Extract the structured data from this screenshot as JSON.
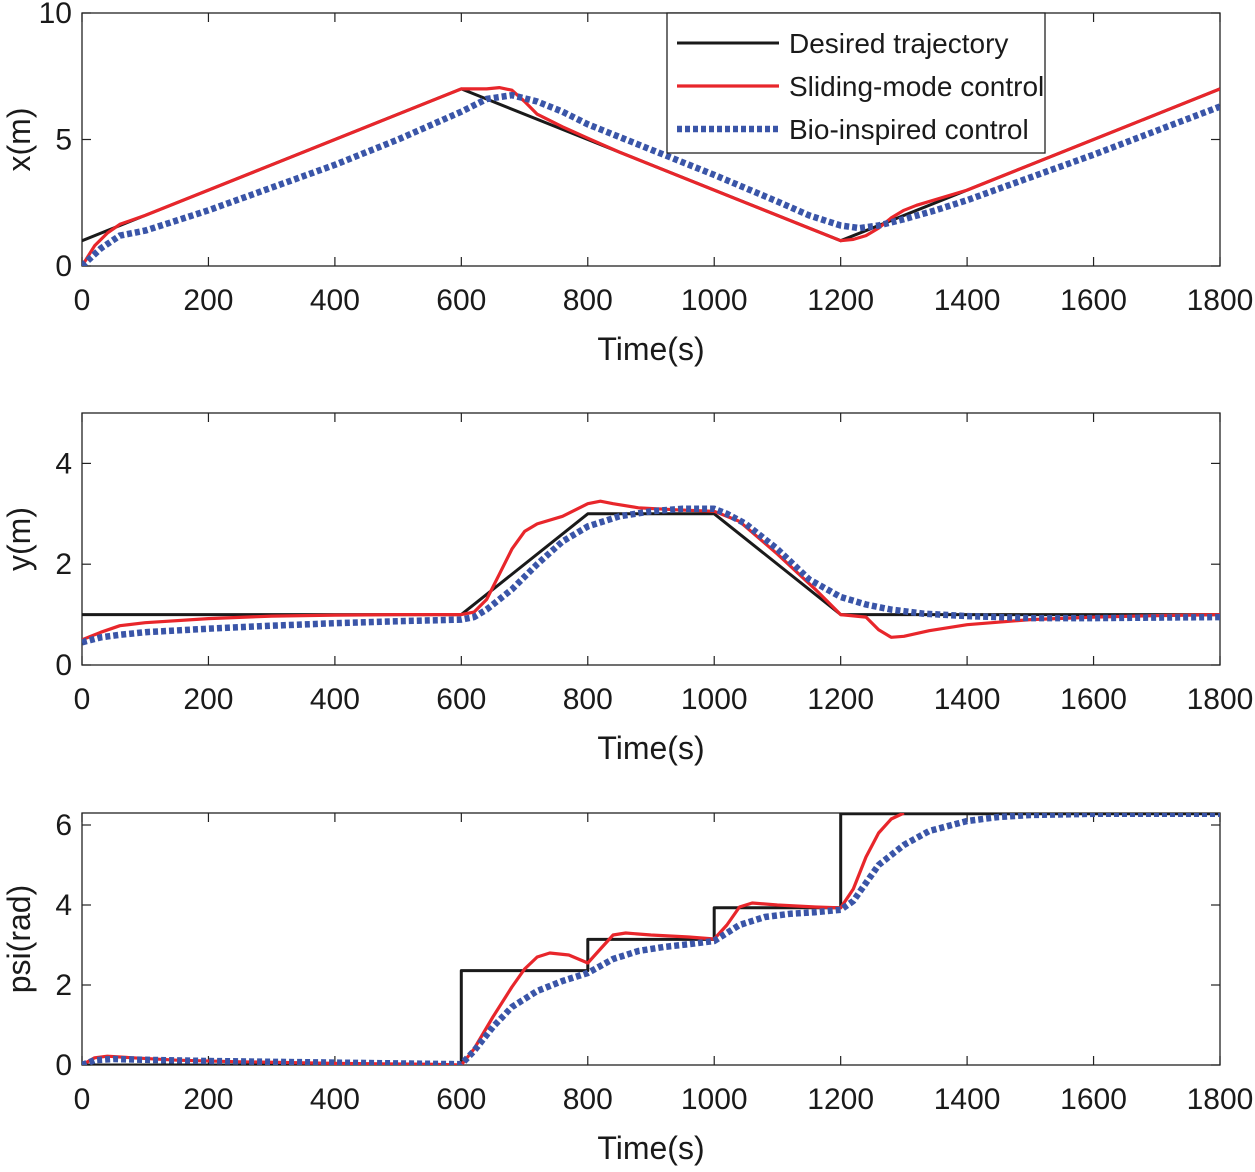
{
  "figure": {
    "xlabel": "Time(s)"
  },
  "legend": {
    "position": "top-right of first panel",
    "entries": [
      {
        "label": "Desired trajectory",
        "color": "#1a1a1a",
        "style": "solid"
      },
      {
        "label": "Sliding-mode control",
        "color": "#e8262b",
        "style": "solid"
      },
      {
        "label": "Bio-inspired control",
        "color": "#3a55a8",
        "style": "dotted"
      }
    ]
  },
  "chart_data": [
    {
      "type": "line",
      "xlabel": "Time(s)",
      "ylabel": "x(m)",
      "xlim": [
        0,
        1800
      ],
      "ylim": [
        0,
        10
      ],
      "xticks": [
        0,
        200,
        400,
        600,
        800,
        1000,
        1200,
        1400,
        1600,
        1800
      ],
      "yticks": [
        0,
        5,
        10
      ],
      "grid": false,
      "series": [
        {
          "name": "Desired trajectory",
          "color": "#1a1a1a",
          "x": [
            0,
            600,
            1200,
            1800
          ],
          "y": [
            1,
            7,
            1,
            7
          ]
        },
        {
          "name": "Sliding-mode control",
          "color": "#e8262b",
          "x": [
            0,
            20,
            40,
            60,
            100,
            200,
            300,
            400,
            500,
            600,
            640,
            660,
            680,
            700,
            720,
            760,
            800,
            850,
            900,
            1000,
            1050,
            1100,
            1150,
            1200,
            1220,
            1240,
            1260,
            1280,
            1300,
            1320,
            1400,
            1500,
            1600,
            1700,
            1800
          ],
          "y": [
            0,
            0.8,
            1.3,
            1.65,
            2,
            3,
            4,
            5,
            6,
            7,
            7,
            7.05,
            6.95,
            6.5,
            6,
            5.5,
            5.05,
            4.5,
            4,
            3,
            2.5,
            2,
            1.5,
            1.0,
            1.05,
            1.2,
            1.5,
            1.9,
            2.2,
            2.4,
            3.0,
            4.0,
            5.0,
            6.0,
            7.0
          ]
        },
        {
          "name": "Bio-inspired control",
          "color": "#3a55a8",
          "x": [
            0,
            30,
            60,
            100,
            150,
            200,
            300,
            400,
            500,
            600,
            640,
            680,
            720,
            760,
            800,
            900,
            1000,
            1100,
            1150,
            1200,
            1230,
            1260,
            1300,
            1350,
            1400,
            1500,
            1600,
            1700,
            1800
          ],
          "y": [
            0,
            0.7,
            1.2,
            1.4,
            1.8,
            2.2,
            3.1,
            4.0,
            5.0,
            6.1,
            6.6,
            6.75,
            6.5,
            6.1,
            5.6,
            4.6,
            3.6,
            2.55,
            2.0,
            1.6,
            1.5,
            1.6,
            1.85,
            2.2,
            2.6,
            3.5,
            4.4,
            5.35,
            6.3
          ]
        }
      ]
    },
    {
      "type": "line",
      "xlabel": "Time(s)",
      "ylabel": "y(m)",
      "xlim": [
        0,
        1800
      ],
      "ylim": [
        0,
        5
      ],
      "xticks": [
        0,
        200,
        400,
        600,
        800,
        1000,
        1200,
        1400,
        1600,
        1800
      ],
      "yticks": [
        0,
        2,
        4
      ],
      "grid": false,
      "series": [
        {
          "name": "Desired trajectory",
          "color": "#1a1a1a",
          "x": [
            0,
            600,
            800,
            1000,
            1200,
            1800
          ],
          "y": [
            1,
            1,
            3,
            3,
            1,
            1
          ]
        },
        {
          "name": "Sliding-mode control",
          "color": "#e8262b",
          "x": [
            0,
            30,
            60,
            100,
            200,
            300,
            400,
            500,
            600,
            620,
            640,
            660,
            680,
            700,
            720,
            760,
            800,
            820,
            840,
            880,
            940,
            1000,
            1040,
            1100,
            1160,
            1200,
            1240,
            1260,
            1280,
            1300,
            1340,
            1400,
            1500,
            1600,
            1700,
            1800
          ],
          "y": [
            0.5,
            0.65,
            0.78,
            0.84,
            0.92,
            0.97,
            0.99,
            1.0,
            1.0,
            1.05,
            1.3,
            1.8,
            2.3,
            2.65,
            2.8,
            2.95,
            3.2,
            3.25,
            3.2,
            3.12,
            3.08,
            3.05,
            2.85,
            2.2,
            1.5,
            1.0,
            0.95,
            0.7,
            0.55,
            0.57,
            0.68,
            0.8,
            0.9,
            0.95,
            0.98,
            1.0
          ]
        },
        {
          "name": "Bio-inspired control",
          "color": "#3a55a8",
          "x": [
            0,
            30,
            60,
            100,
            200,
            300,
            400,
            500,
            600,
            620,
            640,
            680,
            720,
            760,
            800,
            850,
            900,
            950,
            1000,
            1020,
            1050,
            1100,
            1150,
            1200,
            1240,
            1280,
            1330,
            1400,
            1500,
            1600,
            1700,
            1800
          ],
          "y": [
            0.45,
            0.55,
            0.6,
            0.65,
            0.72,
            0.78,
            0.83,
            0.87,
            0.9,
            0.95,
            1.1,
            1.5,
            2.0,
            2.45,
            2.75,
            2.95,
            3.05,
            3.1,
            3.1,
            3.0,
            2.8,
            2.3,
            1.7,
            1.35,
            1.2,
            1.1,
            1.02,
            0.97,
            0.93,
            0.93,
            0.94,
            0.95
          ]
        }
      ]
    },
    {
      "type": "line",
      "xlabel": "Time(s)",
      "ylabel": "psi(rad)",
      "xlim": [
        0,
        1800
      ],
      "ylim": [
        0,
        6.3
      ],
      "xticks": [
        0,
        200,
        400,
        600,
        800,
        1000,
        1200,
        1400,
        1600,
        1800
      ],
      "yticks": [
        0,
        2,
        4,
        6
      ],
      "grid": false,
      "series": [
        {
          "name": "Desired trajectory",
          "color": "#1a1a1a",
          "x": [
            0,
            600,
            600,
            800,
            800,
            1000,
            1000,
            1200,
            1200,
            1800
          ],
          "y": [
            0,
            0,
            2.36,
            2.36,
            3.14,
            3.14,
            3.93,
            3.93,
            6.28,
            6.28
          ]
        },
        {
          "name": "Sliding-mode control",
          "color": "#e8262b",
          "x": [
            0,
            20,
            40,
            80,
            150,
            250,
            400,
            550,
            600,
            620,
            650,
            680,
            700,
            720,
            740,
            770,
            800,
            820,
            840,
            860,
            900,
            960,
            1000,
            1020,
            1040,
            1060,
            1100,
            1160,
            1200,
            1220,
            1240,
            1260,
            1280,
            1300
          ],
          "y": [
            0,
            0.18,
            0.22,
            0.18,
            0.12,
            0.08,
            0.04,
            0.02,
            0.0,
            0.4,
            1.2,
            1.95,
            2.4,
            2.7,
            2.8,
            2.75,
            2.55,
            2.9,
            3.25,
            3.3,
            3.25,
            3.2,
            3.15,
            3.5,
            3.95,
            4.05,
            4.0,
            3.95,
            3.93,
            4.4,
            5.2,
            5.8,
            6.15,
            6.3
          ]
        },
        {
          "name": "Bio-inspired control",
          "color": "#3a55a8",
          "x": [
            0,
            20,
            50,
            100,
            200,
            300,
            400,
            500,
            600,
            620,
            650,
            680,
            720,
            760,
            800,
            840,
            880,
            920,
            960,
            1000,
            1040,
            1080,
            1120,
            1160,
            1200,
            1220,
            1260,
            1300,
            1340,
            1400,
            1450,
            1500,
            1600,
            1800
          ],
          "y": [
            0,
            0.12,
            0.15,
            0.13,
            0.1,
            0.08,
            0.06,
            0.04,
            0.02,
            0.35,
            0.95,
            1.45,
            1.85,
            2.1,
            2.3,
            2.65,
            2.85,
            2.95,
            3.02,
            3.1,
            3.5,
            3.7,
            3.78,
            3.82,
            3.88,
            4.1,
            5.0,
            5.5,
            5.85,
            6.1,
            6.2,
            6.25,
            6.28,
            6.28
          ]
        }
      ]
    }
  ]
}
